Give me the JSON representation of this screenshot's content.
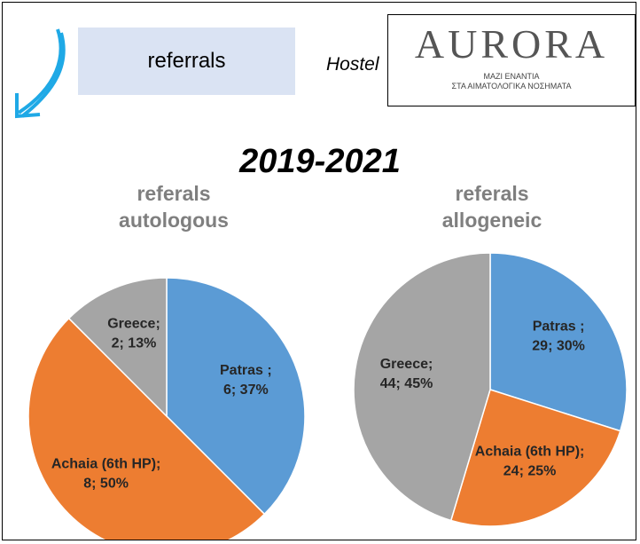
{
  "header": {
    "box_text": "referrals",
    "hostel": "Hostel",
    "logo": "AURORA",
    "logo_line1": "ΜΑΖΙ ΕΝΑΝΤΙΑ",
    "logo_line2": "ΣΤΑ ΑΙΜΑΤΟΛΟΓΙΚΑ ΝΟΣΗΜΑΤΑ",
    "period": "2019-2021"
  },
  "chart_data": [
    {
      "type": "pie",
      "title": "referals autologous",
      "categories": [
        "Patras ;",
        "Achaia (6th HP);",
        "Greece;"
      ],
      "values": [
        6,
        8,
        2
      ],
      "value_labels": [
        "6; 37%",
        "8; 50%",
        "2; 13%"
      ],
      "colors": [
        "#5b9bd5",
        "#ed7d31",
        "#a5a5a5"
      ]
    },
    {
      "type": "pie",
      "title": "referals allogeneic",
      "categories": [
        "Patras ;",
        "Achaia (6th HP);",
        "Greece;"
      ],
      "values": [
        29,
        24,
        44
      ],
      "value_labels": [
        "29; 30%",
        "24; 25%",
        "44; 45%"
      ],
      "colors": [
        "#5b9bd5",
        "#ed7d31",
        "#a5a5a5"
      ]
    }
  ]
}
